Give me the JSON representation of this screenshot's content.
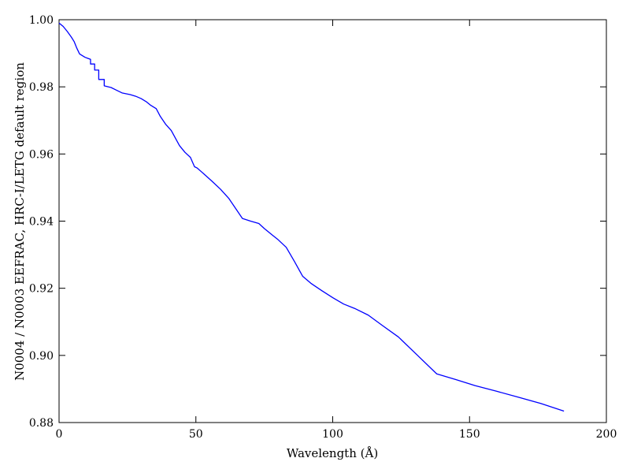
{
  "chart_data": {
    "type": "line",
    "title": "",
    "xlabel": "Wavelength (Å)",
    "ylabel": "N0004 / N0003 EEFRAC, HRC-I/LETG default region",
    "xlim": [
      0,
      200
    ],
    "ylim": [
      0.88,
      1.0
    ],
    "grid": false,
    "line_color": "#0000ff",
    "x_ticks": [
      0,
      50,
      100,
      150,
      200
    ],
    "x_tick_labels": [
      "0",
      "50",
      "100",
      "150",
      "200"
    ],
    "y_ticks": [
      0.88,
      0.9,
      0.92,
      0.94,
      0.96,
      0.98,
      1.0
    ],
    "y_tick_labels": [
      "0.88",
      "0.90",
      "0.92",
      "0.94",
      "0.96",
      "0.98",
      "1.00"
    ],
    "series": [
      {
        "x": [
          0,
          1.5,
          3,
          4.5,
          5.5,
          6.5,
          7.5,
          8.5,
          9.5,
          10.5,
          11.5,
          11.5,
          13,
          13,
          14.5,
          14.5,
          16.5,
          16.5,
          19,
          21,
          23,
          26,
          28,
          30,
          32,
          33.5,
          35.5,
          37,
          39,
          41,
          44,
          46,
          48,
          49.5,
          50.5,
          53,
          56,
          59,
          62,
          65,
          67,
          70,
          73,
          75,
          78,
          80,
          83,
          86,
          89,
          92,
          96,
          100,
          104,
          108,
          113,
          118,
          124,
          131,
          138,
          145,
          152,
          160,
          168,
          176,
          184.5
        ],
        "y": [
          0.999,
          0.998,
          0.9965,
          0.9948,
          0.9935,
          0.9915,
          0.9898,
          0.9893,
          0.9888,
          0.9885,
          0.9882,
          0.9868,
          0.9868,
          0.985,
          0.985,
          0.9822,
          0.9822,
          0.9803,
          0.9798,
          0.979,
          0.9782,
          0.9777,
          0.9772,
          0.9765,
          0.9755,
          0.9745,
          0.9735,
          0.9712,
          0.9688,
          0.967,
          0.9625,
          0.9605,
          0.959,
          0.9562,
          0.9558,
          0.954,
          0.9518,
          0.9495,
          0.9468,
          0.9432,
          0.9408,
          0.94,
          0.9393,
          0.9378,
          0.9358,
          0.9345,
          0.9322,
          0.928,
          0.9236,
          0.9215,
          0.9193,
          0.9172,
          0.9153,
          0.914,
          0.912,
          0.909,
          0.9055,
          0.9,
          0.8945,
          0.8928,
          0.891,
          0.8893,
          0.8875,
          0.8857,
          0.8834
        ]
      }
    ]
  }
}
